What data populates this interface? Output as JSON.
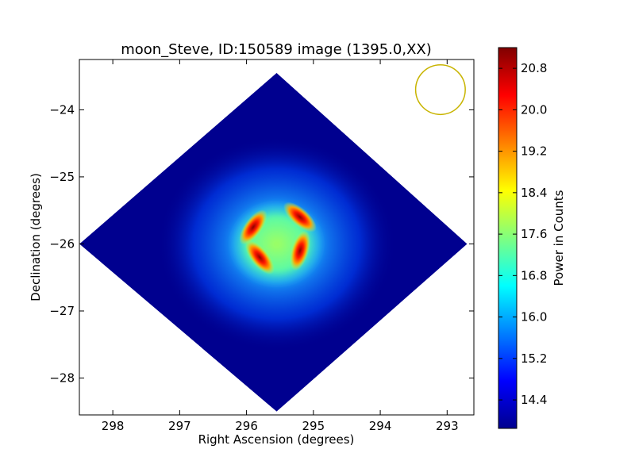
{
  "chart_data": {
    "type": "heatmap",
    "title": "moon_Steve, ID:150589 image (1395.0,XX)",
    "xlabel": "Right Ascension (degrees)",
    "ylabel": "Declination (degrees)",
    "xlim": [
      298.5,
      292.6
    ],
    "ylim": [
      -28.55,
      -23.25
    ],
    "x_ticks": [
      {
        "value": 298,
        "label": "298"
      },
      {
        "value": 297,
        "label": "297"
      },
      {
        "value": 296,
        "label": "296"
      },
      {
        "value": 295,
        "label": "295"
      },
      {
        "value": 294,
        "label": "294"
      },
      {
        "value": 293,
        "label": "293"
      }
    ],
    "y_ticks": [
      {
        "value": -24,
        "label": "−24"
      },
      {
        "value": -25,
        "label": "−25"
      },
      {
        "value": -26,
        "label": "−26"
      },
      {
        "value": -27,
        "label": "−27"
      },
      {
        "value": -28,
        "label": "−28"
      }
    ],
    "grid": false,
    "colormap": "jet",
    "colorbar": {
      "label": "Power in Counts",
      "min": 13.85,
      "max": 21.2,
      "ticks": [
        {
          "value": 14.4,
          "label": "14.4"
        },
        {
          "value": 15.2,
          "label": "15.2"
        },
        {
          "value": 16.0,
          "label": "16.0"
        },
        {
          "value": 16.8,
          "label": "16.8"
        },
        {
          "value": 17.6,
          "label": "17.6"
        },
        {
          "value": 18.4,
          "label": "18.4"
        },
        {
          "value": 19.2,
          "label": "19.2"
        },
        {
          "value": 20.0,
          "label": "20.0"
        },
        {
          "value": 20.8,
          "label": "20.8"
        }
      ]
    },
    "image_region": {
      "shape": "diamond",
      "center": [
        295.55,
        -26.0
      ],
      "vertices": [
        [
          295.55,
          -23.45
        ],
        [
          292.7,
          -26.0
        ],
        [
          295.55,
          -28.5
        ],
        [
          298.5,
          -26.0
        ]
      ]
    },
    "background_value": 14.0,
    "center_value": 17.2,
    "peaks": [
      {
        "ra": 295.9,
        "dec": -25.75,
        "value": 21.0
      },
      {
        "ra": 295.2,
        "dec": -25.6,
        "value": 21.0
      },
      {
        "ra": 295.2,
        "dec": -26.1,
        "value": 21.0
      },
      {
        "ra": 295.8,
        "dec": -26.2,
        "value": 21.0
      }
    ],
    "beam_marker": {
      "shape": "circle",
      "ra": 293.1,
      "dec": -23.7,
      "radius_deg": 0.37,
      "color": "#c8b400"
    }
  }
}
